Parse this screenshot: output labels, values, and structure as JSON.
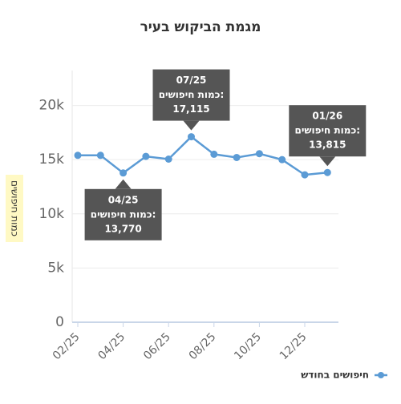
{
  "chart_data": {
    "type": "line",
    "title": "מגמת הביקוש בעיר",
    "y_label": "כמות חיפושים",
    "categories": [
      "02/25",
      null,
      "04/25",
      null,
      "06/25",
      null,
      "08/25",
      null,
      "10/25",
      null,
      "12/25",
      null
    ],
    "series": [
      {
        "name": "חיפושים בחודש",
        "color": "#5b9bd5",
        "values": [
          15400,
          15400,
          13770,
          15300,
          15050,
          17115,
          15500,
          15200,
          15550,
          15000,
          13600,
          13815
        ]
      }
    ],
    "ylim": [
      0,
      23000
    ],
    "yticks": [
      0,
      {
        "value": 5000,
        "label": "5k"
      },
      {
        "value": 10000,
        "label": "10k"
      },
      {
        "value": 15000,
        "label": "15k"
      },
      {
        "value": 20000,
        "label": "20k"
      }
    ],
    "grid": true,
    "legend": "bottom-right",
    "annotations": [
      {
        "title": "07/25",
        "text": "כמות חיפושים:",
        "value": "17,115"
      },
      {
        "title": "04/25",
        "text": "כמות חיפושים:",
        "value": "13,770"
      },
      {
        "title": "01/26",
        "text": "כמות חיפושים:",
        "value": "13,815"
      }
    ]
  }
}
